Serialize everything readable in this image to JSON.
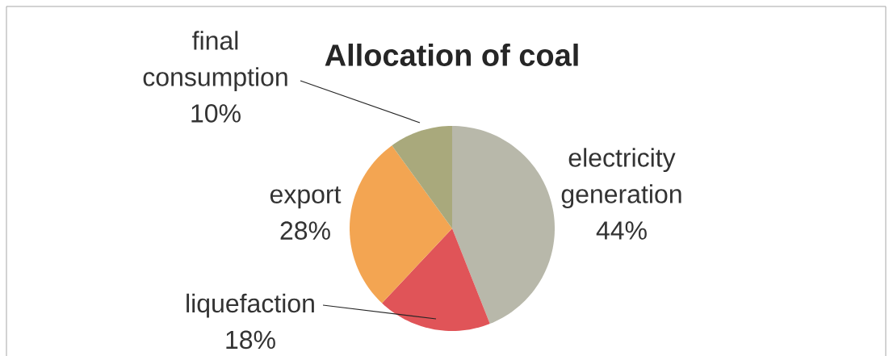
{
  "chart_data": {
    "type": "pie",
    "title": "Allocation of coal",
    "categories": [
      "electricity generation",
      "liquefaction",
      "export",
      "final consumption"
    ],
    "values": [
      44,
      18,
      28,
      10
    ],
    "value_labels": [
      "44%",
      "18%",
      "28%",
      "10%"
    ],
    "colors": [
      "#b8b8aa",
      "#e05458",
      "#f3a552",
      "#a9a97c"
    ]
  }
}
